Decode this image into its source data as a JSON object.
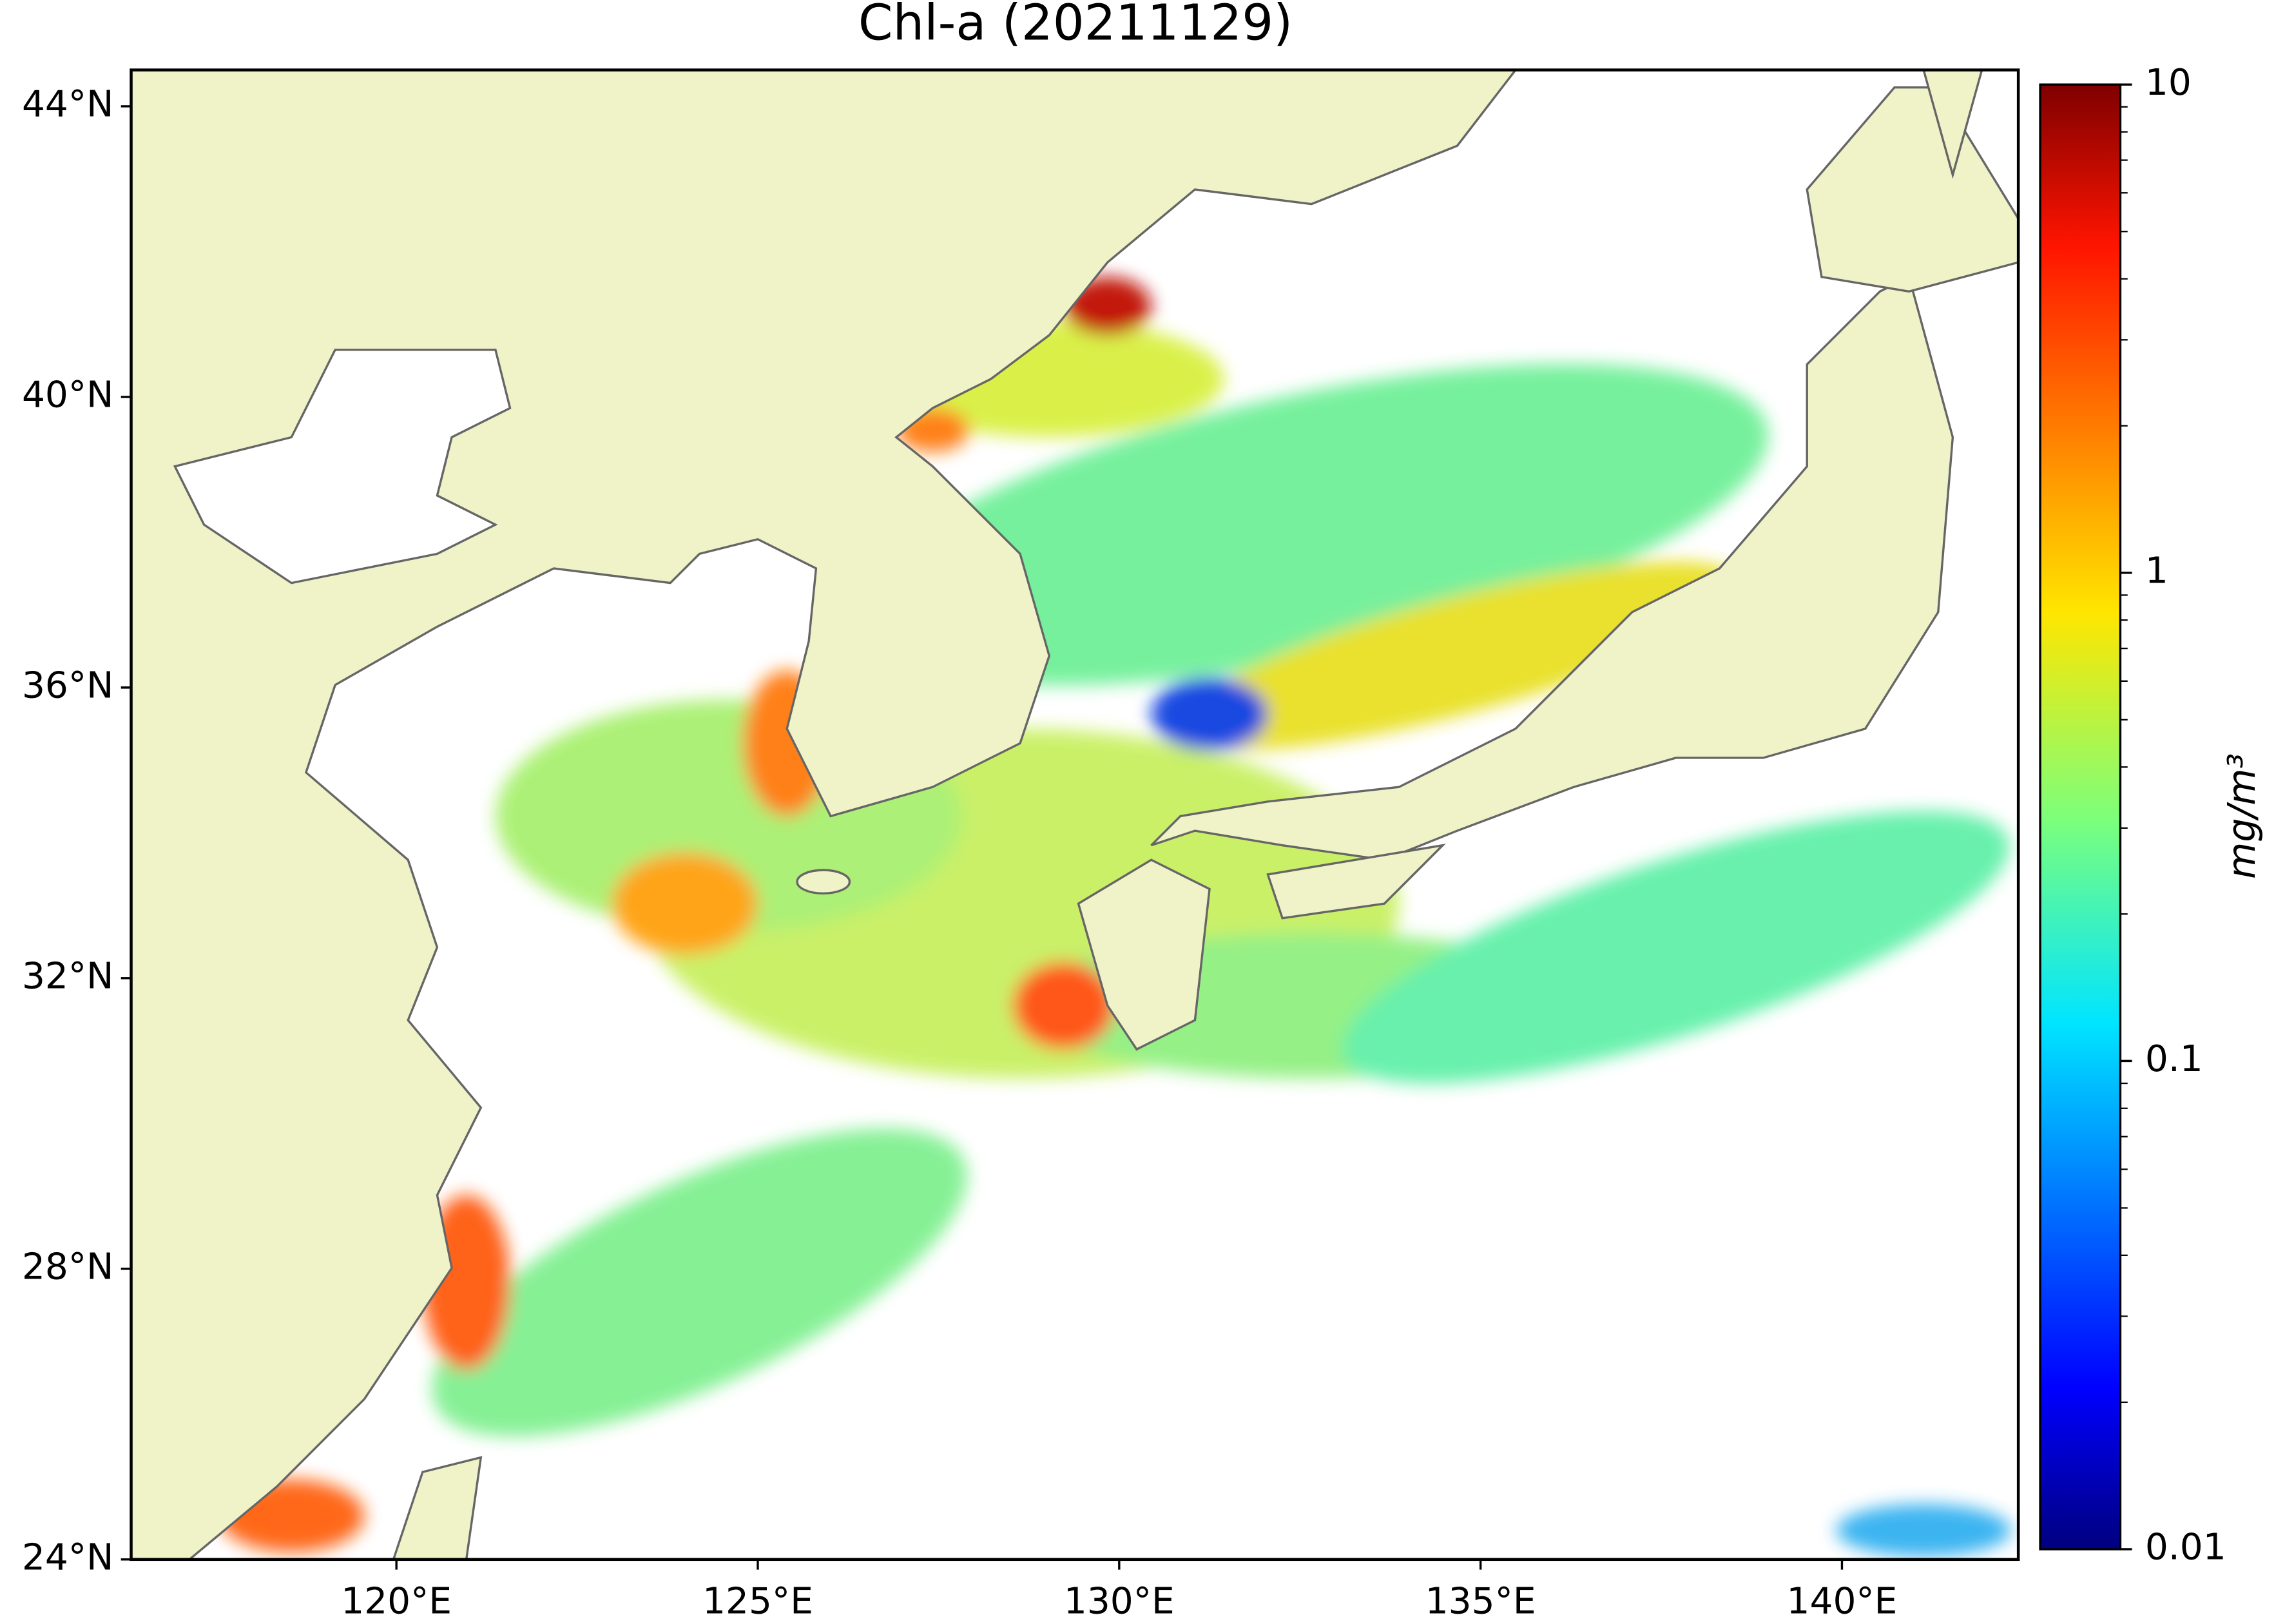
{
  "chart_data": {
    "type": "map",
    "title": "Chl-a (20211129)",
    "xlim": [
      116.33,
      142.44
    ],
    "ylim": [
      24,
      44.5
    ],
    "xticks": [
      {
        "value": 120,
        "label": "120°E"
      },
      {
        "value": 125,
        "label": "125°E"
      },
      {
        "value": 130,
        "label": "130°E"
      },
      {
        "value": 135,
        "label": "135°E"
      },
      {
        "value": 140,
        "label": "140°E"
      }
    ],
    "yticks": [
      {
        "value": 24,
        "label": "24°N"
      },
      {
        "value": 28,
        "label": "28°N"
      },
      {
        "value": 32,
        "label": "32°N"
      },
      {
        "value": 36,
        "label": "36°N"
      },
      {
        "value": 40,
        "label": "40°N"
      },
      {
        "value": 44,
        "label": "44°N"
      }
    ],
    "colorbar": {
      "label": "mg/m³",
      "lim": [
        0.01,
        10
      ],
      "ticks": [
        0.01,
        0.1,
        1,
        10
      ],
      "log": true,
      "colormap": "jet"
    }
  }
}
